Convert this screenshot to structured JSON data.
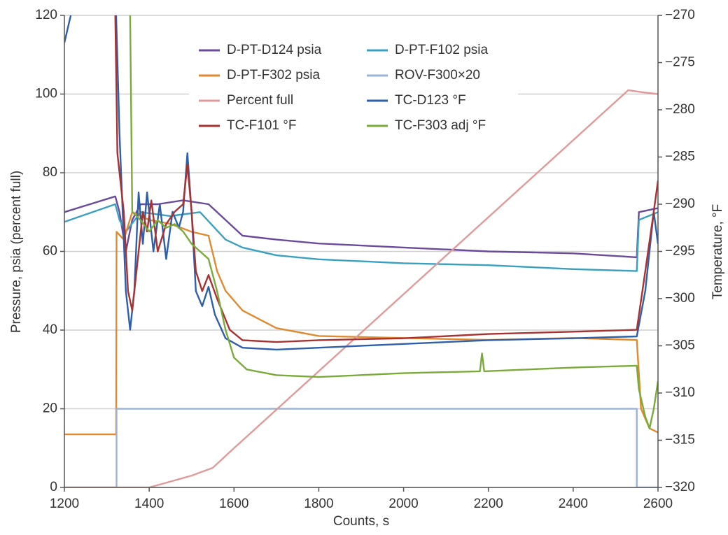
{
  "chart_data": {
    "type": "line",
    "xlabel": "Counts, s",
    "ylabel": "Pressure, psia (percent full)",
    "y2label": "Temperature, °F",
    "xlim": [
      1200,
      2600
    ],
    "xticks": [
      1200,
      1400,
      1600,
      1800,
      2000,
      2200,
      2400,
      2600
    ],
    "ylim": [
      0,
      120
    ],
    "yticks": [
      0,
      20,
      40,
      60,
      80,
      100,
      120
    ],
    "y2lim": [
      -320,
      -270
    ],
    "y2ticks": [
      {
        "value": -320,
        "label": "−320"
      },
      {
        "value": -315,
        "label": "−315"
      },
      {
        "value": -310,
        "label": "−310"
      },
      {
        "value": -305,
        "label": "−305"
      },
      {
        "value": -300,
        "label": "−300"
      },
      {
        "value": -295,
        "label": "−295"
      },
      {
        "value": -290,
        "label": "−290"
      },
      {
        "value": -285,
        "label": "−285"
      },
      {
        "value": -280,
        "label": "−280"
      },
      {
        "value": -275,
        "label": "−275"
      },
      {
        "value": -270,
        "label": "−270"
      }
    ],
    "grid": true,
    "legend": "upper center",
    "series": [
      {
        "name": "D-PT-D124 psia",
        "color": "#6b4a9b",
        "x": [
          1200,
          1320,
          1330,
          1345,
          1360,
          1380,
          1420,
          1480,
          1540,
          1580,
          1620,
          1700,
          1800,
          2000,
          2200,
          2400,
          2550,
          2555,
          2600
        ],
        "values": [
          70,
          74,
          70,
          60,
          68,
          72,
          72,
          73,
          72,
          68,
          64,
          63,
          62,
          61,
          60,
          59.5,
          58.5,
          70,
          71
        ]
      },
      {
        "name": "D-PT-F102 psia",
        "color": "#3aa0c0",
        "x": [
          1200,
          1320,
          1330,
          1345,
          1380,
          1450,
          1520,
          1580,
          1620,
          1700,
          1800,
          2000,
          2200,
          2400,
          2550,
          2555,
          2600
        ],
        "values": [
          67.5,
          72,
          68,
          65,
          70,
          69,
          70,
          63,
          61,
          59,
          58,
          57,
          56.5,
          55.5,
          55,
          68,
          70
        ]
      },
      {
        "name": "D-PT-F302 psia",
        "color": "#e08a30",
        "x": [
          1200,
          1322,
          1323,
          1340,
          1360,
          1400,
          1450,
          1500,
          1540,
          1560,
          1580,
          1620,
          1700,
          1800,
          2000,
          2200,
          2400,
          2550,
          2560,
          2580,
          2600
        ],
        "values": [
          13.5,
          13.5,
          65,
          63,
          70,
          68,
          67,
          65,
          64,
          55,
          50,
          45,
          40.5,
          38.5,
          38,
          37.5,
          38,
          37.5,
          20,
          15,
          14
        ]
      },
      {
        "name": "ROV-F300×20",
        "color": "#9ab3d8",
        "x": [
          1200,
          1323,
          1323,
          2550,
          2550,
          2600
        ],
        "values": [
          0,
          0,
          20,
          20,
          0,
          0
        ]
      },
      {
        "name": "Percent full",
        "color": "#e09a9a",
        "x": [
          1200,
          1400,
          1450,
          1500,
          1550,
          1600,
          2530,
          2560,
          2600
        ],
        "values": [
          0,
          0,
          1.5,
          3,
          5,
          10,
          101,
          100.5,
          100
        ]
      },
      {
        "name": "TC-D123 °F",
        "color": "#2e5fa8",
        "axis": "y2",
        "x": [
          1200,
          1215,
          1270,
          1322,
          1330,
          1345,
          1355,
          1365,
          1375,
          1385,
          1395,
          1410,
          1425,
          1440,
          1455,
          1470,
          1480,
          1490,
          1500,
          1510,
          1525,
          1540,
          1555,
          1580,
          1620,
          1700,
          1800,
          2000,
          2200,
          2400,
          2550,
          2570,
          2590,
          2600
        ],
        "values": [
          -272.9,
          -270,
          null,
          -270,
          -282.5,
          -299.2,
          -303.3,
          -299.2,
          -288.75,
          -294.2,
          -288.75,
          -295,
          -290,
          -295.8,
          -290.8,
          -292.5,
          -290.8,
          -284.6,
          -290.8,
          -299.2,
          -300.8,
          -298.75,
          -301.7,
          -304.2,
          -305.2,
          -305.4,
          -305.2,
          -304.8,
          -304.4,
          -304.2,
          -304,
          -299.2,
          -290.8,
          -294.2
        ]
      },
      {
        "name": "TC-F101 °F",
        "color": "#a83232",
        "axis": "y2",
        "x": [
          1320,
          1325,
          1340,
          1350,
          1360,
          1370,
          1385,
          1395,
          1405,
          1420,
          1440,
          1460,
          1480,
          1490,
          1500,
          1510,
          1525,
          1540,
          1560,
          1590,
          1620,
          1700,
          1800,
          2000,
          2200,
          2400,
          2550,
          2570,
          2590,
          2600
        ],
        "values": [
          -270,
          -284.6,
          -290.8,
          -299.2,
          -301.25,
          -297.1,
          -290.8,
          -292.9,
          -289.6,
          -295,
          -292.1,
          -290.8,
          -290,
          -285.8,
          -290.8,
          -297.1,
          -299.2,
          -297.5,
          -300,
          -303.3,
          -304.4,
          -304.6,
          -304.4,
          -304.2,
          -303.75,
          -303.5,
          -303.3,
          -297.1,
          -290.8,
          -287.5
        ]
      },
      {
        "name": "TC-F303 adj °F",
        "color": "#7aab3a",
        "axis": "y2",
        "x": [
          1355,
          1360,
          1380,
          1400,
          1420,
          1440,
          1460,
          1480,
          1500,
          1520,
          1540,
          1560,
          1580,
          1600,
          1630,
          1700,
          1800,
          2000,
          2180,
          2185,
          2190,
          2400,
          2550,
          2555,
          2570,
          2580,
          2590,
          2600
        ],
        "values": [
          -270,
          -290.8,
          -291.7,
          -292.9,
          -291.7,
          -292.5,
          -292.1,
          -292.9,
          -294.2,
          -295,
          -295.8,
          -299.2,
          -303.3,
          -306.25,
          -307.5,
          -308.1,
          -308.3,
          -307.9,
          -307.7,
          -305.8,
          -307.7,
          -307.3,
          -307.1,
          -309.6,
          -312.5,
          -313.75,
          -311.7,
          -308.75
        ]
      }
    ]
  }
}
